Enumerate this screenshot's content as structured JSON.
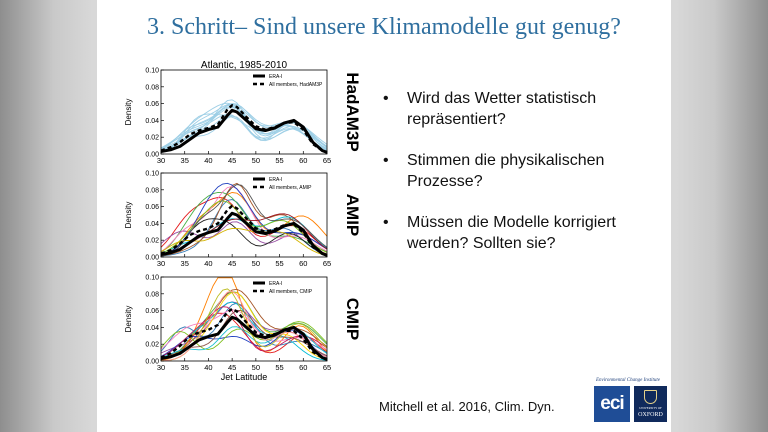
{
  "slide": {
    "title": "3. Schritt– Sind unsere Klimamodelle gut genug?",
    "bullets": [
      "Wird das Wetter statistisch repräsentiert?",
      "Stimmen die physikalischen Prozesse?",
      "Müssen die Modelle korrigiert werden? Sollten sie?"
    ],
    "bullet_glyph": "•",
    "citation": "Mitchell et al. 2016, Clim. Dyn.",
    "logo_caption": "Environmental Change Institute",
    "eci_logo_text": "eci",
    "oxford_small": "UNIVERSITY OF",
    "oxford_name": "OXFORD"
  },
  "chart_data": [
    {
      "type": "line",
      "title": "Atlantic, 1985-2010",
      "side_label": "HadAM3P",
      "xlabel": "",
      "ylabel": "Density",
      "xlim": [
        30,
        65
      ],
      "ylim": [
        0,
        0.1
      ],
      "xticks": [
        "30",
        "35",
        "40",
        "45",
        "50",
        "55",
        "60",
        "65"
      ],
      "yticks": [
        "0.00",
        "0.02",
        "0.04",
        "0.06",
        "0.08",
        "0.10"
      ],
      "legend": [
        "ERA-I",
        "All members, HadAM3P"
      ],
      "legend_position": "top-right",
      "ensemble_color": "#9ecfe6",
      "ensemble_count": 12,
      "x": [
        30,
        32,
        34,
        36,
        38,
        40,
        42,
        44,
        45,
        46,
        48,
        50,
        52,
        54,
        56,
        58,
        60,
        62,
        64,
        65
      ],
      "series": [
        {
          "name": "ERA-I",
          "style": "solid",
          "values": [
            0.003,
            0.005,
            0.009,
            0.017,
            0.025,
            0.029,
            0.032,
            0.046,
            0.052,
            0.05,
            0.04,
            0.03,
            0.028,
            0.031,
            0.037,
            0.04,
            0.032,
            0.014,
            0.004,
            0.002
          ]
        },
        {
          "name": "All members, HadAM3P",
          "style": "dashed",
          "values": [
            0.004,
            0.008,
            0.014,
            0.023,
            0.028,
            0.031,
            0.035,
            0.053,
            0.058,
            0.056,
            0.044,
            0.033,
            0.029,
            0.032,
            0.037,
            0.038,
            0.029,
            0.012,
            0.004,
            0.002
          ]
        }
      ]
    },
    {
      "type": "line",
      "title": "",
      "side_label": "AMIP",
      "xlabel": "",
      "ylabel": "Density",
      "xlim": [
        30,
        65
      ],
      "ylim": [
        0,
        0.1
      ],
      "xticks": [
        "30",
        "35",
        "40",
        "45",
        "50",
        "55",
        "60",
        "65"
      ],
      "yticks": [
        "0.00",
        "0.02",
        "0.04",
        "0.06",
        "0.08",
        "0.10"
      ],
      "legend": [
        "ERA-I",
        "All members, AMIP"
      ],
      "legend_position": "top-right",
      "ensemble_colors": [
        "#e41a1c",
        "#377eb8",
        "#4daf4a",
        "#984ea3",
        "#ff7f00",
        "#a65628",
        "#f781bf",
        "#00bcd4",
        "#222222",
        "#1f3fbf",
        "#7fbf1f",
        "#d4b400",
        "#9b111e",
        "#555555"
      ],
      "x": [
        30,
        32,
        34,
        36,
        38,
        40,
        42,
        44,
        45,
        46,
        48,
        50,
        52,
        54,
        56,
        58,
        60,
        62,
        64,
        65
      ],
      "series": [
        {
          "name": "ERA-I",
          "style": "solid",
          "values": [
            0.003,
            0.005,
            0.009,
            0.017,
            0.025,
            0.029,
            0.032,
            0.046,
            0.052,
            0.05,
            0.04,
            0.03,
            0.028,
            0.031,
            0.037,
            0.04,
            0.032,
            0.014,
            0.004,
            0.002
          ]
        },
        {
          "name": "All members, AMIP",
          "style": "dashed",
          "values": [
            0.004,
            0.008,
            0.016,
            0.026,
            0.031,
            0.034,
            0.04,
            0.056,
            0.061,
            0.058,
            0.046,
            0.034,
            0.03,
            0.033,
            0.038,
            0.039,
            0.029,
            0.012,
            0.004,
            0.002
          ]
        }
      ]
    },
    {
      "type": "line",
      "title": "",
      "side_label": "CMIP",
      "xlabel": "Jet Latitude",
      "ylabel": "Density",
      "xlim": [
        30,
        65
      ],
      "ylim": [
        0,
        0.1
      ],
      "xticks": [
        "30",
        "35",
        "40",
        "45",
        "50",
        "55",
        "60",
        "65"
      ],
      "yticks": [
        "0.00",
        "0.02",
        "0.04",
        "0.06",
        "0.08",
        "0.10"
      ],
      "legend": [
        "ERA-I",
        "All members, CMIP"
      ],
      "legend_position": "top-right",
      "ensemble_colors": [
        "#e41a1c",
        "#377eb8",
        "#4daf4a",
        "#984ea3",
        "#ff7f00",
        "#a65628",
        "#f781bf",
        "#00bcd4",
        "#ffd400",
        "#1f3fbf",
        "#7fbf1f",
        "#c2185b",
        "#8c564b",
        "#17becf",
        "#bcbd22",
        "#ff9896"
      ],
      "x": [
        30,
        32,
        34,
        36,
        38,
        40,
        42,
        44,
        45,
        46,
        48,
        50,
        52,
        54,
        56,
        58,
        60,
        62,
        64,
        65
      ],
      "series": [
        {
          "name": "ERA-I",
          "style": "solid",
          "values": [
            0.003,
            0.005,
            0.009,
            0.017,
            0.025,
            0.029,
            0.032,
            0.046,
            0.052,
            0.05,
            0.04,
            0.03,
            0.028,
            0.031,
            0.037,
            0.04,
            0.032,
            0.014,
            0.004,
            0.002
          ]
        },
        {
          "name": "All members, CMIP",
          "style": "dashed",
          "values": [
            0.004,
            0.009,
            0.018,
            0.029,
            0.034,
            0.037,
            0.043,
            0.058,
            0.062,
            0.059,
            0.046,
            0.034,
            0.03,
            0.032,
            0.036,
            0.036,
            0.026,
            0.011,
            0.004,
            0.002
          ]
        }
      ]
    }
  ]
}
